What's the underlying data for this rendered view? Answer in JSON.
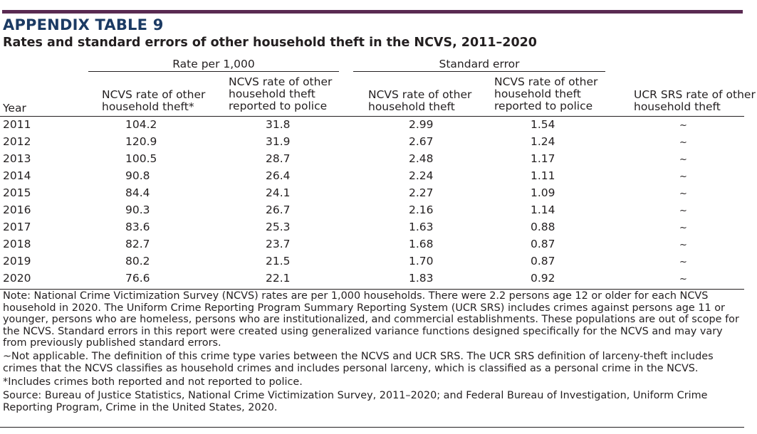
{
  "appendix_label": "APPENDIX TABLE 9",
  "title": "Rates and standard errors of other household theft in the NCVS, 2011–2020",
  "group_headers": {
    "rate": "Rate per 1,000",
    "se": "Standard error"
  },
  "columns": {
    "year": "Year",
    "rate_ncvs": [
      "NCVS rate of other",
      "household theft*"
    ],
    "rate_police": [
      "NCVS rate of other",
      "household theft",
      "reported to police"
    ],
    "se_ncvs": [
      "NCVS rate of other",
      "household theft"
    ],
    "se_police": [
      "NCVS rate of other",
      "household theft",
      "reported to police"
    ],
    "ucr": [
      "UCR SRS rate of other",
      "household theft"
    ]
  },
  "rows": [
    {
      "year": "2011",
      "rate_ncvs": "104.2",
      "rate_police": "31.8",
      "se_ncvs": "2.99",
      "se_police": "1.54",
      "ucr": "~"
    },
    {
      "year": "2012",
      "rate_ncvs": "120.9",
      "rate_police": "31.9",
      "se_ncvs": "2.67",
      "se_police": "1.24",
      "ucr": "~"
    },
    {
      "year": "2013",
      "rate_ncvs": "100.5",
      "rate_police": "28.7",
      "se_ncvs": "2.48",
      "se_police": "1.17",
      "ucr": "~"
    },
    {
      "year": "2014",
      "rate_ncvs": "90.8",
      "rate_police": "26.4",
      "se_ncvs": "2.24",
      "se_police": "1.11",
      "ucr": "~"
    },
    {
      "year": "2015",
      "rate_ncvs": "84.4",
      "rate_police": "24.1",
      "se_ncvs": "2.27",
      "se_police": "1.09",
      "ucr": "~"
    },
    {
      "year": "2016",
      "rate_ncvs": "90.3",
      "rate_police": "26.7",
      "se_ncvs": "2.16",
      "se_police": "1.14",
      "ucr": "~"
    },
    {
      "year": "2017",
      "rate_ncvs": "83.6",
      "rate_police": "25.3",
      "se_ncvs": "1.63",
      "se_police": "0.88",
      "ucr": "~"
    },
    {
      "year": "2018",
      "rate_ncvs": "82.7",
      "rate_police": "23.7",
      "se_ncvs": "1.68",
      "se_police": "0.87",
      "ucr": "~"
    },
    {
      "year": "2019",
      "rate_ncvs": "80.2",
      "rate_police": "21.5",
      "se_ncvs": "1.70",
      "se_police": "0.87",
      "ucr": "~"
    },
    {
      "year": "2020",
      "rate_ncvs": "76.6",
      "rate_police": "22.1",
      "se_ncvs": "1.83",
      "se_police": "0.92",
      "ucr": "~"
    }
  ],
  "notes": {
    "note": "Note: National Crime Victimization Survey (NCVS) rates are per 1,000 households. There were 2.2 persons age 12 or older for each NCVS household in 2020. The Uniform Crime Reporting Program Summary Reporting System (UCR SRS) includes crimes against persons age 11 or younger, persons who are homeless, persons who are institutionalized, and commercial establishments. These populations are out of scope for the NCVS. Standard errors in this report were created using generalized variance functions designed specifically for the NCVS and may vary from previously published standard errors.",
    "tilde": "~Not applicable. The definition of this crime type varies between the NCVS and UCR SRS. The UCR SRS definition of larceny-theft includes crimes that the NCVS classifies as household crimes and includes personal larceny, which is classified as a personal crime in the NCVS.",
    "asterisk": "*Includes crimes both reported and not reported to police.",
    "source": "Source: Bureau of Justice Statistics, National Crime Victimization Survey, 2011–2020; and Federal Bureau of Investigation, Uniform Crime Reporting Program, Crime in the United States, 2020."
  },
  "colors": {
    "top_rule": "#5a2a52",
    "appendix_label": "#1b3a63",
    "text": "#231f20"
  }
}
